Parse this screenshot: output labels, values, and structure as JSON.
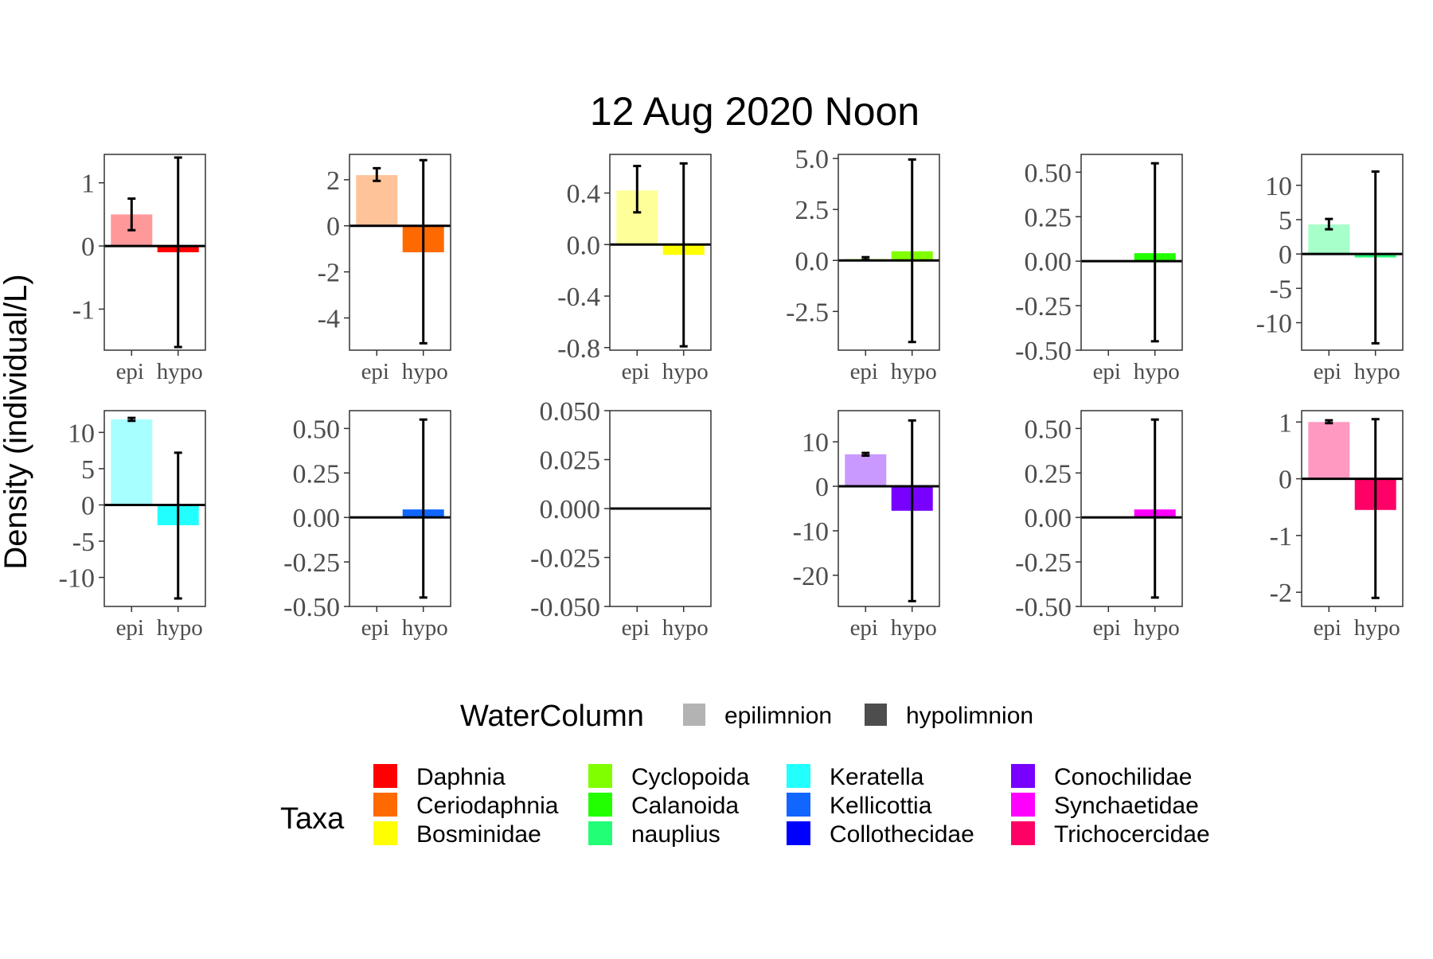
{
  "chart_data": {
    "type": "bar",
    "title": "12 Aug 2020 Noon",
    "ylabel": "Density (individual/L)",
    "categories": [
      "epi",
      "hypo"
    ],
    "panels": [
      {
        "taxon": "Daphnia",
        "ylim": [
          -1.65,
          1.45
        ],
        "ticks": [
          1,
          0,
          -1
        ],
        "tick_labels": [
          "1",
          "0",
          "-1"
        ],
        "values": [
          0.5,
          -0.1
        ],
        "error": [
          [
            0.25,
            0.75
          ],
          [
            -1.6,
            1.4
          ]
        ]
      },
      {
        "taxon": "Ceriodaphnia",
        "ylim": [
          -5.4,
          3.1
        ],
        "ticks": [
          2,
          0,
          -2,
          -4
        ],
        "tick_labels": [
          "2",
          "0",
          "-2",
          "-4"
        ],
        "values": [
          2.2,
          -1.15
        ],
        "error": [
          [
            1.95,
            2.5
          ],
          [
            -5.1,
            2.85
          ]
        ]
      },
      {
        "taxon": "Bosminidae",
        "ylim": [
          -0.82,
          0.7
        ],
        "ticks": [
          0.4,
          0.0,
          -0.4,
          -0.8
        ],
        "tick_labels": [
          "0.4",
          "0.0",
          "-0.4",
          "-0.8"
        ],
        "values": [
          0.42,
          -0.08
        ],
        "error": [
          [
            0.25,
            0.61
          ],
          [
            -0.79,
            0.63
          ]
        ]
      },
      {
        "taxon": "Cyclopoida",
        "ylim": [
          -4.4,
          5.2
        ],
        "ticks": [
          5.0,
          2.5,
          0.0,
          -2.5
        ],
        "tick_labels": [
          "5.0",
          "2.5",
          "0.0",
          "-2.5"
        ],
        "values": [
          0.08,
          0.45
        ],
        "error": [
          [
            0.03,
            0.16
          ],
          [
            -4.0,
            4.95
          ]
        ]
      },
      {
        "taxon": "Calanoida",
        "ylim": [
          -0.5,
          0.6
        ],
        "ticks": [
          0.5,
          0.25,
          0.0,
          -0.25,
          -0.5
        ],
        "tick_labels": [
          "0.50",
          "0.25",
          "0.00",
          "-0.25",
          "-0.50"
        ],
        "values": [
          0.0,
          0.045
        ],
        "error": [
          [
            0.0,
            0.0
          ],
          [
            -0.45,
            0.55
          ]
        ]
      },
      {
        "taxon": "nauplius",
        "ylim": [
          -14,
          14.5
        ],
        "ticks": [
          10,
          5,
          0,
          -5,
          -10
        ],
        "tick_labels": [
          "10",
          "5",
          "0",
          "-5",
          "-10"
        ],
        "values": [
          4.3,
          -0.5
        ],
        "error": [
          [
            3.6,
            5.1
          ],
          [
            -13,
            12
          ]
        ]
      },
      {
        "taxon": "Keratella",
        "ylim": [
          -14,
          13
        ],
        "ticks": [
          10,
          5,
          0,
          -5,
          -10
        ],
        "tick_labels": [
          "10",
          "5",
          "0",
          "-5",
          "-10"
        ],
        "values": [
          11.8,
          -2.8
        ],
        "error": [
          [
            11.6,
            12.0
          ],
          [
            -12.9,
            7.2
          ]
        ]
      },
      {
        "taxon": "Kellicottia",
        "ylim": [
          -0.5,
          0.6
        ],
        "ticks": [
          0.5,
          0.25,
          0.0,
          -0.25,
          -0.5
        ],
        "tick_labels": [
          "0.50",
          "0.25",
          "0.00",
          "-0.25",
          "-0.50"
        ],
        "values": [
          0.0,
          0.045
        ],
        "error": [
          [
            0.0,
            0.0
          ],
          [
            -0.45,
            0.55
          ]
        ]
      },
      {
        "taxon": "Collothecidae",
        "ylim": [
          -0.05,
          0.05
        ],
        "ticks": [
          0.05,
          0.025,
          0.0,
          -0.025,
          -0.05
        ],
        "tick_labels": [
          "0.050",
          "0.025",
          "0.000",
          "-0.025",
          "-0.050"
        ],
        "values": [
          0.0,
          0.0
        ],
        "error": [
          [
            0.0,
            0.0
          ],
          [
            0.0,
            0.0
          ]
        ]
      },
      {
        "taxon": "Conochilidae",
        "ylim": [
          -27,
          17
        ],
        "ticks": [
          10,
          0,
          -10,
          -20
        ],
        "tick_labels": [
          "10",
          "0",
          "-10",
          "-20"
        ],
        "values": [
          7.2,
          -5.5
        ],
        "error": [
          [
            6.9,
            7.5
          ],
          [
            -25.8,
            14.8
          ]
        ]
      },
      {
        "taxon": "Synchaetidae",
        "ylim": [
          -0.5,
          0.6
        ],
        "ticks": [
          0.5,
          0.25,
          0.0,
          -0.25,
          -0.5
        ],
        "tick_labels": [
          "0.50",
          "0.25",
          "0.00",
          "-0.25",
          "-0.50"
        ],
        "values": [
          0.0,
          0.045
        ],
        "error": [
          [
            0.0,
            0.0
          ],
          [
            -0.45,
            0.55
          ]
        ]
      },
      {
        "taxon": "Trichocercidae",
        "ylim": [
          -2.25,
          1.2
        ],
        "ticks": [
          1,
          0,
          -1,
          -2
        ],
        "tick_labels": [
          "1",
          "0",
          "-1",
          "-2"
        ],
        "values": [
          1.0,
          -0.55
        ],
        "error": [
          [
            0.98,
            1.03
          ],
          [
            -2.1,
            1.05
          ]
        ]
      }
    ],
    "legend_watercolumn": {
      "title": "WaterColumn",
      "entries": [
        {
          "label": "epilimnion",
          "color": "#b3b3b3"
        },
        {
          "label": "hypolimnion",
          "color": "#4d4d4d"
        }
      ]
    },
    "legend_taxa": {
      "title": "Taxa",
      "entries": [
        {
          "label": "Daphnia",
          "color": "#ff0000"
        },
        {
          "label": "Ceriodaphnia",
          "color": "#ff6a00"
        },
        {
          "label": "Bosminidae",
          "color": "#ffff00"
        },
        {
          "label": "Cyclopoida",
          "color": "#80ff00"
        },
        {
          "label": "Calanoida",
          "color": "#22ff00"
        },
        {
          "label": "nauplius",
          "color": "#22ff77"
        },
        {
          "label": "Keratella",
          "color": "#22ffff"
        },
        {
          "label": "Kellicottia",
          "color": "#1166ff"
        },
        {
          "label": "Collothecidae",
          "color": "#0000ff"
        },
        {
          "label": "Conochilidae",
          "color": "#7700ff"
        },
        {
          "label": "Synchaetidae",
          "color": "#ff00ff"
        },
        {
          "label": "Trichocercidae",
          "color": "#ff0066"
        }
      ]
    },
    "legend_placement": "bottom",
    "grid": false
  }
}
